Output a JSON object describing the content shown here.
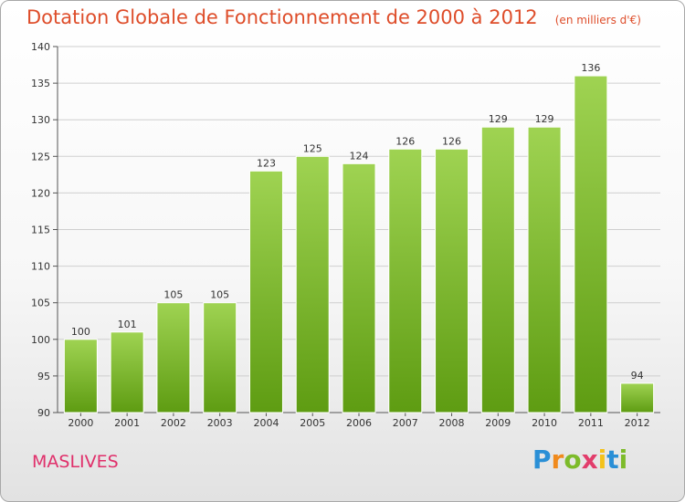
{
  "title": "Dotation Globale de Fonctionnement de 2000 à 2012",
  "unit": "(en milliers d'€)",
  "place": "MASLIVES",
  "brand": {
    "text": "Proxiti",
    "letters": [
      {
        "ch": "P",
        "color": "#2a8fd6"
      },
      {
        "ch": "r",
        "color": "#f08a1c"
      },
      {
        "ch": "o",
        "color": "#7dbb2a"
      },
      {
        "ch": "x",
        "color": "#e23d6b"
      },
      {
        "ch": "i",
        "color": "#f4c21a"
      },
      {
        "ch": "t",
        "color": "#2a8fd6"
      },
      {
        "ch": "i",
        "color": "#7dbb2a"
      }
    ]
  },
  "colors": {
    "bar_top": "#9fd352",
    "bar_bottom": "#5e9c12",
    "title": "#de4d2a",
    "place": "#e0306b",
    "grid": "#cfcfcf"
  },
  "chart_data": {
    "type": "bar",
    "title": "Dotation Globale de Fonctionnement de 2000 à 2012",
    "xlabel": "",
    "ylabel": "",
    "ylim": [
      90,
      140
    ],
    "yticks": [
      90,
      95,
      100,
      105,
      110,
      115,
      120,
      125,
      130,
      135,
      140
    ],
    "grid": true,
    "categories": [
      "2000",
      "2001",
      "2002",
      "2003",
      "2004",
      "2005",
      "2006",
      "2007",
      "2008",
      "2009",
      "2010",
      "2011",
      "2012"
    ],
    "values": [
      100,
      101,
      105,
      105,
      123,
      125,
      124,
      126,
      126,
      129,
      129,
      136,
      94
    ]
  }
}
